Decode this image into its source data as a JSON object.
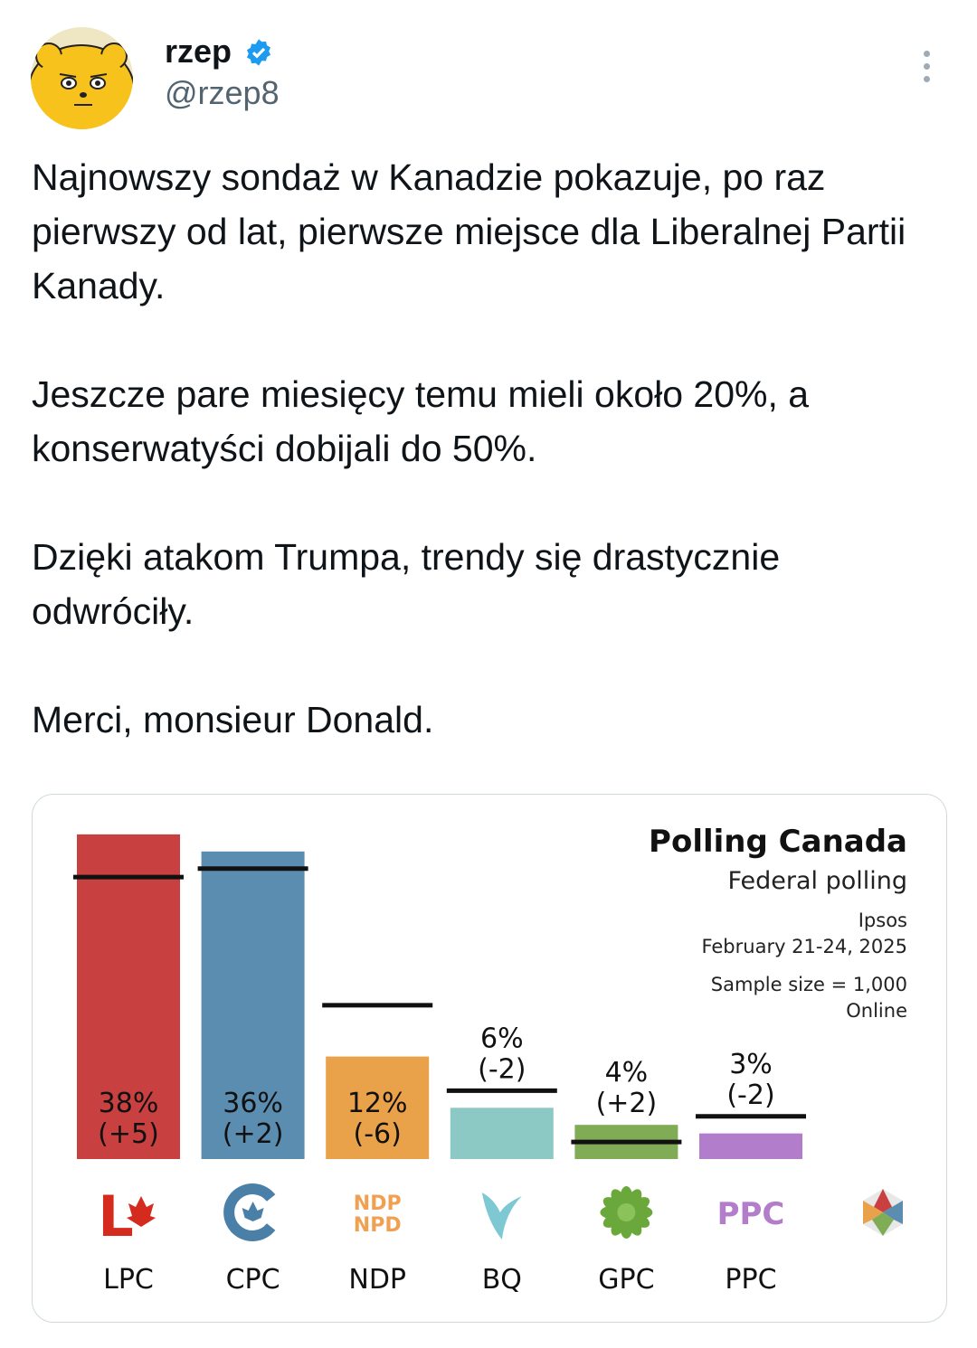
{
  "tweet": {
    "author_name": "rzep",
    "author_handle": "@rzep8",
    "paragraphs": [
      "Najnowszy sondaż w Kanadzie pokazuje, po raz pierwszy od lat, pierwsze miejsce dla Liberalnej Partii Kanady.",
      "Jeszcze pare miesięcy temu mieli około 20%, a konserwatyści dobijali do 50%.",
      "Dzięki atakom Trumpa, trendy się drastycznie odwróciły.",
      "Merci, monsieur Donald."
    ]
  },
  "chart_data": {
    "type": "bar",
    "title": "Polling Canada",
    "subtitle": "Federal polling",
    "pollster": "Ipsos",
    "dates": "February 21-24, 2025",
    "sample": "Sample size = 1,000",
    "method": "Online",
    "categories": [
      "LPC",
      "CPC",
      "NDP",
      "BQ",
      "GPC",
      "PPC"
    ],
    "values": [
      38,
      36,
      12,
      6,
      4,
      3
    ],
    "changes": [
      5,
      2,
      -6,
      -2,
      2,
      -2
    ],
    "value_labels": [
      "38%",
      "36%",
      "12%",
      "6%",
      "4%",
      "3%"
    ],
    "change_labels": [
      "(+5)",
      "(+2)",
      "(-6)",
      "(-2)",
      "(+2)",
      "(-2)"
    ],
    "colors": [
      "#c94040",
      "#5b8db0",
      "#e9a14a",
      "#8cc9c4",
      "#7fac55",
      "#b27dcb"
    ],
    "logo_texts": {
      "NDP": "NDP NPD",
      "PPC": "PPC"
    },
    "legend": "none"
  }
}
